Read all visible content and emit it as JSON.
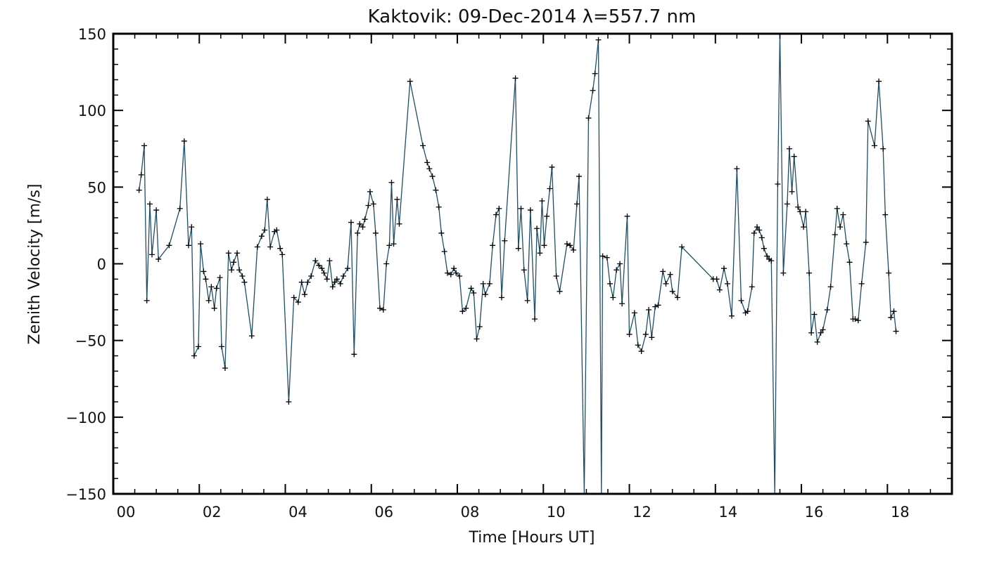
{
  "chart_data": {
    "type": "line",
    "title": "Kaktovik: 09-Dec-2014 λ=557.7 nm",
    "xlabel": "Time [Hours UT]",
    "ylabel": "Zenith Velocity [m/s]",
    "xlim": [
      0,
      19.5
    ],
    "ylim": [
      -150,
      150
    ],
    "x_ticks": [
      0,
      2,
      4,
      6,
      8,
      10,
      12,
      14,
      16,
      18
    ],
    "x_tick_labels": [
      "00",
      "02",
      "04",
      "06",
      "08",
      "10",
      "12",
      "14",
      "16",
      "18"
    ],
    "y_ticks": [
      -150,
      -100,
      -50,
      0,
      50,
      100,
      150
    ],
    "y_tick_labels": [
      "−150",
      "−100",
      "−50",
      "0",
      "50",
      "100",
      "150"
    ],
    "grid": false,
    "line_color": "#1f4e66",
    "marker": "+",
    "series": [
      {
        "points": [
          [
            0.6,
            48
          ],
          [
            0.65,
            58
          ],
          [
            0.72,
            77
          ],
          [
            0.78,
            -24
          ],
          [
            0.85,
            39
          ],
          [
            0.9,
            6
          ],
          [
            1.0,
            35
          ],
          [
            1.05,
            3
          ],
          [
            1.3,
            12
          ],
          [
            1.55,
            36
          ],
          [
            1.65,
            80
          ],
          [
            1.75,
            12
          ],
          [
            1.82,
            24
          ],
          [
            1.88,
            -60
          ],
          [
            1.98,
            -54
          ],
          [
            2.03,
            13
          ],
          [
            2.1,
            -5
          ],
          [
            2.15,
            -10
          ],
          [
            2.22,
            -24
          ],
          [
            2.28,
            -15
          ],
          [
            2.35,
            -29
          ],
          [
            2.4,
            -16
          ],
          [
            2.48,
            -9
          ],
          [
            2.52,
            -54
          ],
          [
            2.6,
            -68
          ],
          [
            2.68,
            7
          ],
          [
            2.75,
            -4
          ],
          [
            2.8,
            1
          ],
          [
            2.88,
            7
          ],
          [
            2.93,
            -4
          ],
          [
            3.0,
            -8
          ],
          [
            3.05,
            -12
          ],
          [
            3.22,
            -47
          ],
          [
            3.35,
            11
          ],
          [
            3.45,
            18
          ],
          [
            3.52,
            22
          ],
          [
            3.58,
            42
          ],
          [
            3.65,
            11
          ],
          [
            3.75,
            21
          ],
          [
            3.8,
            22
          ],
          [
            3.88,
            10
          ],
          [
            3.93,
            6
          ],
          [
            4.08,
            -90
          ],
          [
            4.2,
            -22
          ],
          [
            4.3,
            -25
          ],
          [
            4.38,
            -12
          ],
          [
            4.45,
            -20
          ],
          [
            4.52,
            -12
          ],
          [
            4.6,
            -8
          ],
          [
            4.7,
            2
          ],
          [
            4.78,
            -1
          ],
          [
            4.85,
            -3
          ],
          [
            4.9,
            -6
          ],
          [
            4.97,
            -10
          ],
          [
            5.03,
            2
          ],
          [
            5.1,
            -15
          ],
          [
            5.15,
            -12
          ],
          [
            5.2,
            -10
          ],
          [
            5.28,
            -13
          ],
          [
            5.35,
            -8
          ],
          [
            5.45,
            -3
          ],
          [
            5.53,
            27
          ],
          [
            5.6,
            -59
          ],
          [
            5.68,
            20
          ],
          [
            5.73,
            26
          ],
          [
            5.8,
            24
          ],
          [
            5.85,
            29
          ],
          [
            5.93,
            38
          ],
          [
            5.97,
            47
          ],
          [
            6.05,
            39
          ],
          [
            6.1,
            20
          ],
          [
            6.2,
            -29
          ],
          [
            6.28,
            -30
          ],
          [
            6.35,
            0
          ],
          [
            6.42,
            12
          ],
          [
            6.47,
            53
          ],
          [
            6.52,
            13
          ],
          [
            6.6,
            42
          ],
          [
            6.65,
            26
          ],
          [
            6.9,
            119
          ],
          [
            7.2,
            77
          ],
          [
            7.3,
            66
          ],
          [
            7.35,
            62
          ],
          [
            7.42,
            57
          ],
          [
            7.5,
            48
          ],
          [
            7.57,
            37
          ],
          [
            7.63,
            20
          ],
          [
            7.7,
            8
          ],
          [
            7.77,
            -6
          ],
          [
            7.85,
            -7
          ],
          [
            7.92,
            -3
          ],
          [
            7.97,
            -6
          ],
          [
            8.05,
            -8
          ],
          [
            8.12,
            -31
          ],
          [
            8.2,
            -29
          ],
          [
            8.32,
            -16
          ],
          [
            8.38,
            -19
          ],
          [
            8.45,
            -49
          ],
          [
            8.52,
            -41
          ],
          [
            8.6,
            -13
          ],
          [
            8.65,
            -20
          ],
          [
            8.75,
            -13
          ],
          [
            8.82,
            12
          ],
          [
            8.9,
            32
          ],
          [
            8.97,
            36
          ],
          [
            9.03,
            -22
          ],
          [
            9.1,
            15
          ],
          [
            9.35,
            121
          ],
          [
            9.42,
            10
          ],
          [
            9.48,
            36
          ],
          [
            9.55,
            -4
          ],
          [
            9.63,
            -24
          ],
          [
            9.7,
            35
          ],
          [
            9.8,
            -36
          ],
          [
            9.85,
            23
          ],
          [
            9.92,
            7
          ],
          [
            9.97,
            41
          ],
          [
            10.02,
            12
          ],
          [
            10.08,
            31
          ],
          [
            10.15,
            49
          ],
          [
            10.2,
            63
          ],
          [
            10.3,
            -8
          ],
          [
            10.38,
            -18
          ],
          [
            10.55,
            13
          ],
          [
            10.62,
            12
          ],
          [
            10.7,
            9
          ],
          [
            10.78,
            39
          ],
          [
            10.83,
            57
          ],
          [
            10.95,
            -150
          ],
          [
            11.05,
            95
          ],
          [
            11.15,
            113
          ],
          [
            11.2,
            124
          ],
          [
            11.28,
            146
          ],
          [
            11.35,
            -150
          ],
          [
            11.38,
            5
          ],
          [
            11.48,
            4
          ],
          [
            11.55,
            -13
          ],
          [
            11.62,
            -22
          ],
          [
            11.7,
            -4
          ],
          [
            11.78,
            0
          ],
          [
            11.83,
            -26
          ],
          [
            11.95,
            31
          ],
          [
            12.0,
            -46
          ],
          [
            12.12,
            -32
          ],
          [
            12.2,
            -53
          ],
          [
            12.28,
            -57
          ],
          [
            12.38,
            -46
          ],
          [
            12.45,
            -30
          ],
          [
            12.52,
            -48
          ],
          [
            12.6,
            -28
          ],
          [
            12.67,
            -27
          ],
          [
            12.78,
            -5
          ],
          [
            12.85,
            -13
          ],
          [
            12.95,
            -7
          ],
          [
            13.0,
            -18
          ],
          [
            13.12,
            -22
          ],
          [
            13.22,
            11
          ],
          [
            13.95,
            -10
          ],
          [
            14.03,
            -10
          ],
          [
            14.1,
            -17
          ],
          [
            14.2,
            -3
          ],
          [
            14.28,
            -13
          ],
          [
            14.38,
            -34
          ],
          [
            14.5,
            62
          ],
          [
            14.6,
            -24
          ],
          [
            14.7,
            -32
          ],
          [
            14.75,
            -31
          ],
          [
            14.85,
            -15
          ],
          [
            14.9,
            20
          ],
          [
            14.97,
            24
          ],
          [
            15.02,
            22
          ],
          [
            15.08,
            17
          ],
          [
            15.13,
            10
          ],
          [
            15.2,
            5
          ],
          [
            15.25,
            3
          ],
          [
            15.3,
            2
          ],
          [
            15.38,
            -150
          ],
          [
            15.45,
            52
          ],
          [
            15.5,
            150
          ],
          [
            15.58,
            -6
          ],
          [
            15.67,
            39
          ],
          [
            15.72,
            75
          ],
          [
            15.78,
            47
          ],
          [
            15.83,
            70
          ],
          [
            15.92,
            37
          ],
          [
            15.97,
            34
          ],
          [
            16.05,
            24
          ],
          [
            16.1,
            34
          ],
          [
            16.18,
            -6
          ],
          [
            16.23,
            -45
          ],
          [
            16.3,
            -33
          ],
          [
            16.37,
            -51
          ],
          [
            16.45,
            -45
          ],
          [
            16.5,
            -43
          ],
          [
            16.6,
            -30
          ],
          [
            16.68,
            -15
          ],
          [
            16.78,
            19
          ],
          [
            16.83,
            36
          ],
          [
            16.9,
            24
          ],
          [
            16.97,
            32
          ],
          [
            17.05,
            13
          ],
          [
            17.12,
            1
          ],
          [
            17.2,
            -36
          ],
          [
            17.25,
            -36
          ],
          [
            17.32,
            -37
          ],
          [
            17.4,
            -13
          ],
          [
            17.5,
            14
          ],
          [
            17.55,
            93
          ],
          [
            17.7,
            77
          ],
          [
            17.8,
            119
          ],
          [
            17.9,
            75
          ],
          [
            17.95,
            32
          ],
          [
            18.03,
            -6
          ],
          [
            18.08,
            -35
          ],
          [
            18.15,
            -31
          ],
          [
            18.2,
            -44
          ]
        ]
      }
    ]
  }
}
